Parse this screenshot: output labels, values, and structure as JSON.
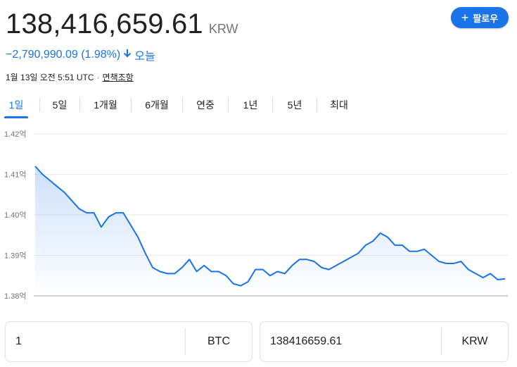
{
  "header": {
    "price": "138,416,659.61",
    "currency": "KRW",
    "follow_label": "팔로우",
    "follow_icon": "plus-icon"
  },
  "change": {
    "text": "−2,790,990.09 (1.98%)",
    "direction_icon": "arrow-down-icon",
    "period": "오늘",
    "color": "#1a73e8"
  },
  "meta": {
    "timestamp": "1월 13일 오전 5:51 UTC",
    "separator": "·",
    "disclaimer": "면책조항"
  },
  "tabs": [
    {
      "label": "1일",
      "active": true
    },
    {
      "label": "5일",
      "active": false
    },
    {
      "label": "1개월",
      "active": false
    },
    {
      "label": "6개월",
      "active": false
    },
    {
      "label": "연중",
      "active": false
    },
    {
      "label": "1년",
      "active": false
    },
    {
      "label": "5년",
      "active": false
    },
    {
      "label": "최대",
      "active": false
    }
  ],
  "chart_data": {
    "type": "area",
    "ytick_labels": [
      "1.42억",
      "1.41억",
      "1.40억",
      "1.39억",
      "1.38억"
    ],
    "yticks": [
      142000000,
      141000000,
      140000000,
      139000000,
      138000000
    ],
    "ylim": [
      138000000,
      142000000
    ],
    "grid": true,
    "line_color": "#1a73e8",
    "values": [
      141200000,
      141000000,
      140850000,
      140700000,
      140550000,
      140350000,
      140150000,
      140050000,
      140050000,
      139700000,
      139950000,
      140050000,
      140050000,
      139750000,
      139450000,
      139050000,
      138700000,
      138600000,
      138550000,
      138550000,
      138700000,
      138900000,
      138600000,
      138750000,
      138600000,
      138600000,
      138500000,
      138300000,
      138250000,
      138350000,
      138650000,
      138650000,
      138500000,
      138600000,
      138550000,
      138750000,
      138900000,
      138900000,
      138850000,
      138700000,
      138650000,
      138750000,
      138850000,
      138950000,
      139050000,
      139250000,
      139350000,
      139550000,
      139450000,
      139250000,
      139250000,
      139100000,
      139100000,
      139150000,
      139000000,
      138850000,
      138800000,
      138800000,
      138850000,
      138650000,
      138550000,
      138450000,
      138550000,
      138400000,
      138420000
    ]
  },
  "converter": {
    "left": {
      "value": "1",
      "unit": "BTC"
    },
    "right": {
      "value": "138416659.61",
      "unit": "KRW"
    }
  }
}
